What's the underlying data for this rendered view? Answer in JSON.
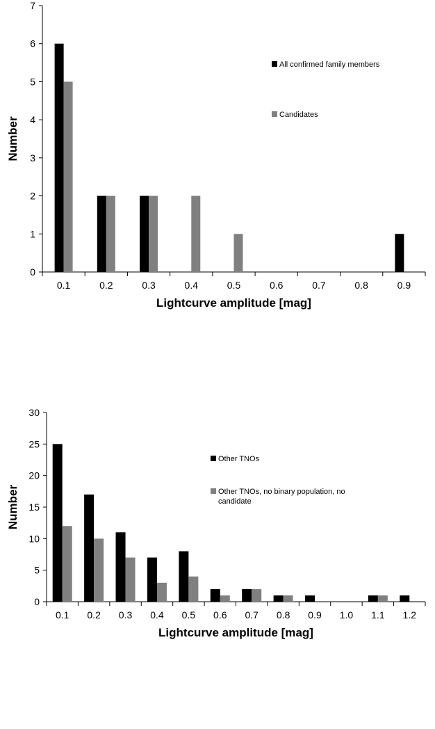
{
  "chart_data": [
    {
      "type": "bar",
      "title": "",
      "xlabel": "Lightcurve amplitude [mag]",
      "ylabel": "Number",
      "ylim": [
        0,
        7
      ],
      "yticks": [
        "0",
        "1",
        "2",
        "3",
        "4",
        "5",
        "6",
        "7"
      ],
      "categories": [
        "0.1",
        "0.2",
        "0.3",
        "0.4",
        "0.5",
        "0.6",
        "0.7",
        "0.8",
        "0.9"
      ],
      "series": [
        {
          "name": "All confirmed family members",
          "color": "#000000",
          "values": [
            6,
            2,
            2,
            0,
            0,
            0,
            0,
            0,
            1
          ]
        },
        {
          "name": "Candidates",
          "color": "#808080",
          "values": [
            5,
            2,
            2,
            2,
            1,
            0,
            0,
            0,
            0
          ]
        }
      ],
      "legend_position": "top-right",
      "grid": false
    },
    {
      "type": "bar",
      "title": "",
      "xlabel": "Lightcurve amplitude [mag]",
      "ylabel": "Number",
      "ylim": [
        0,
        30
      ],
      "yticks": [
        "0",
        "5",
        "10",
        "15",
        "20",
        "25",
        "30"
      ],
      "categories": [
        "0.1",
        "0.2",
        "0.3",
        "0.4",
        "0.5",
        "0.6",
        "0.7",
        "0.8",
        "0.9",
        "1.0",
        "1.1",
        "1.2"
      ],
      "series": [
        {
          "name": "Other TNOs",
          "color": "#000000",
          "values": [
            25,
            17,
            11,
            7,
            8,
            2,
            2,
            1,
            1,
            0,
            1,
            1
          ]
        },
        {
          "name": "Other TNOs, no binary population, no candidate",
          "color": "#808080",
          "values": [
            12,
            10,
            7,
            3,
            4,
            1,
            2,
            1,
            0,
            0,
            1,
            0
          ]
        }
      ],
      "legend_position": "top-right",
      "grid": false
    }
  ]
}
